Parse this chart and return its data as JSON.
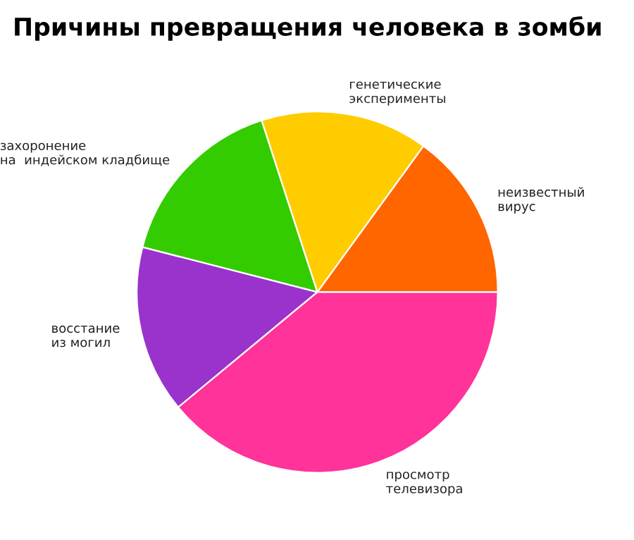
{
  "chart_data": {
    "type": "pie",
    "title": "Причины превращения человека в зомби",
    "categories": [
      "неизвестный\nвирус",
      "генетические\nэксперименты",
      "захоронение\nна  индейском кладбище",
      "восстание\nиз могил",
      "просмотр\nтелевизора"
    ],
    "values": [
      15,
      15,
      16,
      15,
      39
    ],
    "colors": [
      "#ff6600",
      "#ffcc00",
      "#33cc00",
      "#9933cc",
      "#ff3399"
    ]
  }
}
